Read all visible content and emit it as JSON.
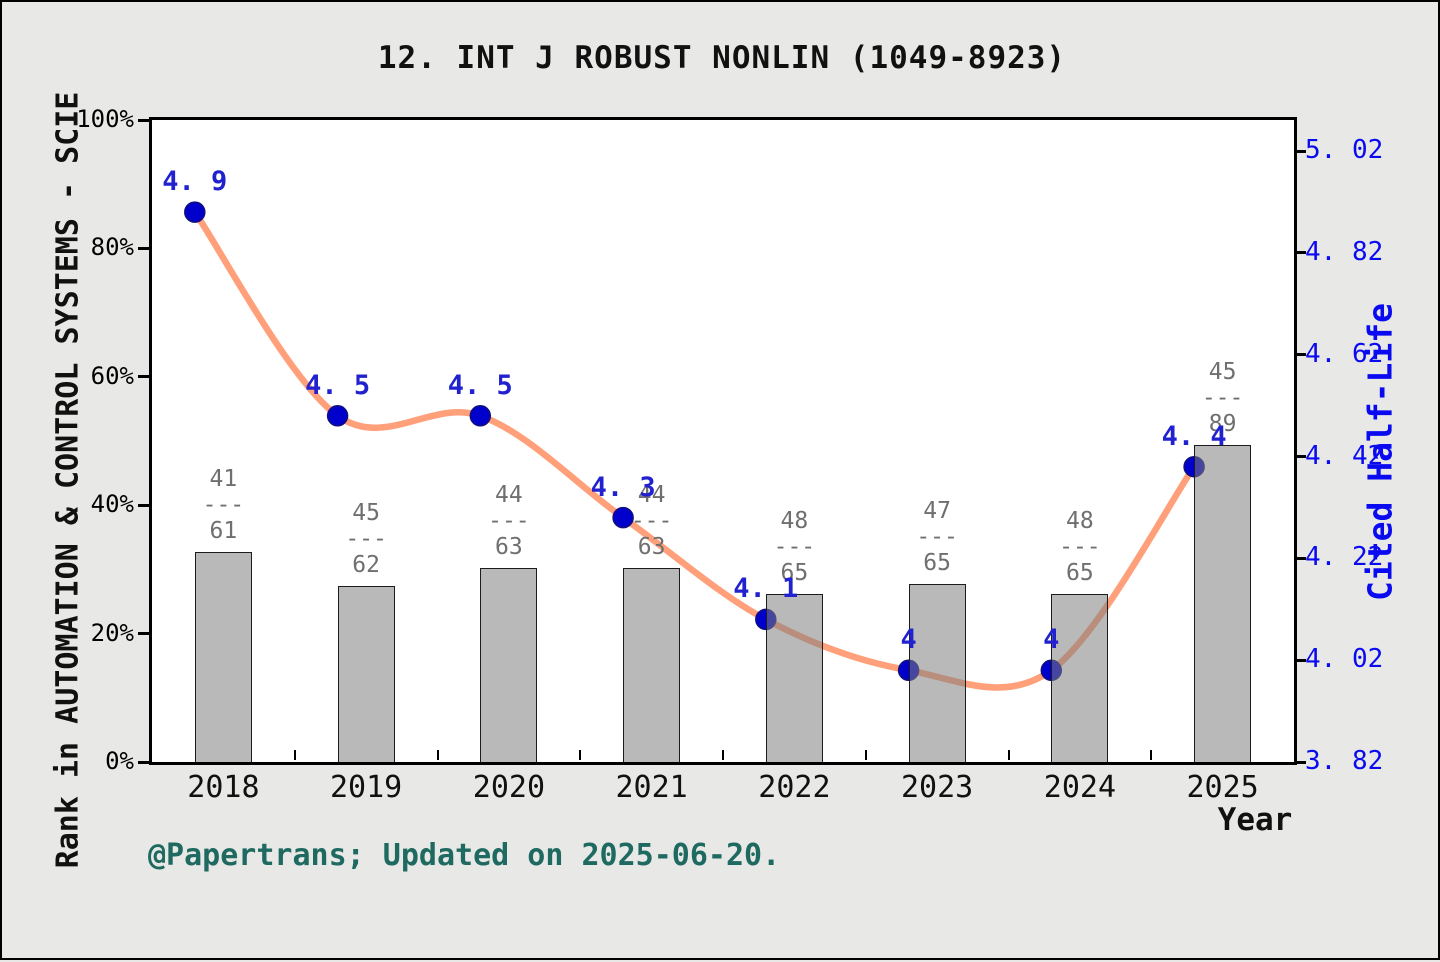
{
  "title": "12.  INT J ROBUST NONLIN (1049-8923)",
  "footer": "@Papertrans; Updated on 2025-06-20.",
  "colors": {
    "background": "#e8e8e6",
    "plot_background": "#ffffff",
    "axis": "#000000",
    "line": "#ffa07a",
    "marker_fill": "#0000cd",
    "marker_edge": "#11117a",
    "value_label_blue": "#2121cf",
    "right_axis_blue": "#0a0af0",
    "bar_fill": "rgba(128,128,128,0.55)",
    "bar_edge": "#1c1c1c",
    "fraction_gray": "#6f6f6f",
    "footer_teal": "#1e6a60"
  },
  "chart_data": {
    "type": "bar+line",
    "title": "12.  INT J ROBUST NONLIN (1049-8923)",
    "categories": [
      "2018",
      "2019",
      "2020",
      "2021",
      "2022",
      "2023",
      "2024",
      "2025"
    ],
    "series": [
      {
        "name": "Rank in AUTOMATION & CONTROL SYSTEMS - SCIE",
        "type": "bar",
        "axis": "left",
        "numerators": [
          41,
          45,
          44,
          44,
          48,
          47,
          48,
          45
        ],
        "denominators": [
          61,
          62,
          63,
          63,
          65,
          65,
          65,
          89
        ],
        "fraction_labels": [
          "41/61",
          "45/62",
          "44/63",
          "44/63",
          "48/65",
          "47/65",
          "48/65",
          "45/89"
        ],
        "bar_heights_pct": [
          32.8,
          27.4,
          30.2,
          30.2,
          26.2,
          27.7,
          26.2,
          49.4
        ]
      },
      {
        "name": "Cited Half-Life",
        "type": "line",
        "axis": "right",
        "values": [
          4.9,
          4.5,
          4.5,
          4.3,
          4.1,
          4.0,
          4.0,
          4.4
        ],
        "point_labels": [
          "4. 9",
          "4. 5",
          "4. 5",
          "4. 3",
          "4. 1",
          "4",
          "4",
          "4. 4"
        ]
      }
    ],
    "left_axis": {
      "label": "Rank in AUTOMATION & CONTROL SYSTEMS - SCIE",
      "min": 0,
      "max": 100,
      "ticks_pct": [
        0,
        20,
        40,
        60,
        80,
        100
      ],
      "tick_labels": [
        "0%",
        "20%",
        "40%",
        "60%",
        "80%",
        "100%"
      ]
    },
    "right_axis": {
      "label": "Cited Half-Life",
      "ticks": [
        3.82,
        4.02,
        4.22,
        4.42,
        4.62,
        4.82,
        5.02
      ],
      "tick_labels": [
        "3. 82",
        "4. 02",
        "4. 22",
        "4. 42",
        "4. 62",
        "4. 82",
        "5. 02"
      ]
    },
    "x_axis": {
      "label": "Year"
    },
    "grid": false,
    "legend": "none"
  }
}
